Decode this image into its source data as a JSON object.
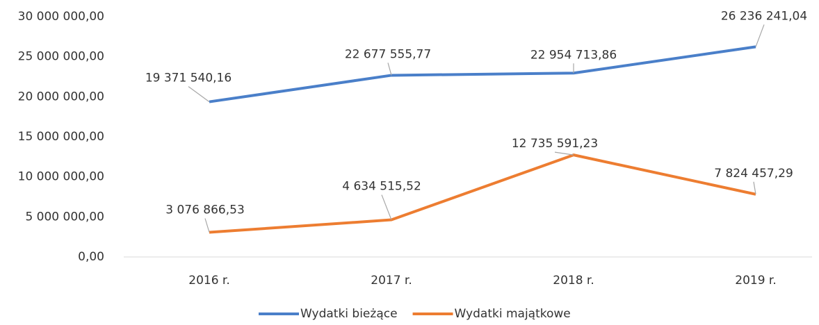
{
  "chart_data": {
    "type": "line",
    "categories": [
      "2016 r.",
      "2017 r.",
      "2018 r.",
      "2019 r."
    ],
    "series": [
      {
        "name": "Wydatki bieżące",
        "color": "#4a7fc9",
        "values": [
          19371540.16,
          22677555.77,
          22954713.86,
          26236241.04
        ],
        "value_labels": [
          "19 371 540,16",
          "22 677 555,77",
          "22 954 713,86",
          "26 236 241,04"
        ]
      },
      {
        "name": "Wydatki majątkowe",
        "color": "#ed7d31",
        "values": [
          3076866.53,
          4634515.52,
          12735591.23,
          7824457.29
        ],
        "value_labels": [
          "3 076 866,53",
          "4 634 515,52",
          "12 735 591,23",
          "7 824 457,29"
        ]
      }
    ],
    "ylim": [
      0,
      30000000
    ],
    "yticks": [
      {
        "value": 0,
        "label": "0,00"
      },
      {
        "value": 5000000,
        "label": "5 000 000,00"
      },
      {
        "value": 10000000,
        "label": "10 000 000,00"
      },
      {
        "value": 15000000,
        "label": "15 000 000,00"
      },
      {
        "value": 20000000,
        "label": "20 000 000,00"
      },
      {
        "value": 25000000,
        "label": "25 000 000,00"
      },
      {
        "value": 30000000,
        "label": "30 000 000,00"
      }
    ],
    "grid": false,
    "legend": "bottom"
  }
}
